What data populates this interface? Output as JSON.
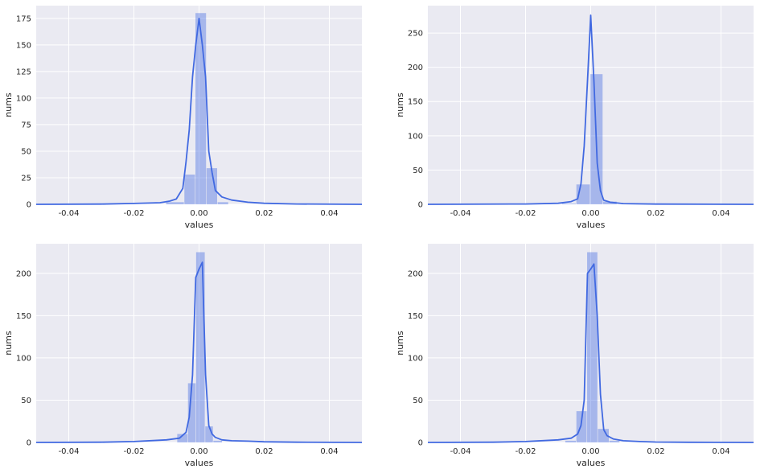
{
  "chart_data": [
    {
      "type": "histogram",
      "xlabel": "values",
      "ylabel": "nums",
      "xlim": [
        -0.05,
        0.05
      ],
      "ylim": [
        0,
        187
      ],
      "xticks": [
        "-0.04",
        "-0.02",
        "0.00",
        "0.02",
        "0.04"
      ],
      "xtick_values": [
        -0.04,
        -0.02,
        0.0,
        0.02,
        0.04
      ],
      "yticks": [
        "0",
        "25",
        "50",
        "75",
        "100",
        "125",
        "150",
        "175"
      ],
      "ytick_values": [
        0,
        25,
        50,
        75,
        100,
        125,
        150,
        175
      ],
      "bins": [
        {
          "x0": -0.0101,
          "x1": -0.0045,
          "value": 2
        },
        {
          "x0": -0.0045,
          "x1": -0.0011,
          "value": 28
        },
        {
          "x0": -0.0011,
          "x1": 0.0023,
          "value": 180
        },
        {
          "x0": 0.0023,
          "x1": 0.0057,
          "value": 34
        },
        {
          "x0": 0.0057,
          "x1": 0.0091,
          "value": 2
        }
      ],
      "kde": {
        "x": [
          -0.05,
          -0.03,
          -0.02,
          -0.012,
          -0.009,
          -0.007,
          -0.005,
          -0.004,
          -0.003,
          -0.002,
          -0.001,
          0.0,
          0.001,
          0.002,
          0.003,
          0.004,
          0.005,
          0.007,
          0.01,
          0.015,
          0.02,
          0.03,
          0.05
        ],
        "y": [
          0,
          0.2,
          0.8,
          1.5,
          3,
          5,
          15,
          40,
          70,
          120,
          150,
          175,
          150,
          120,
          50,
          30,
          13,
          7,
          4,
          2,
          1,
          0.3,
          0
        ]
      }
    },
    {
      "type": "histogram",
      "xlabel": "values",
      "ylabel": "nums",
      "xlim": [
        -0.05,
        0.05
      ],
      "ylim": [
        0,
        290
      ],
      "xticks": [
        "-0.04",
        "-0.02",
        "0.00",
        "0.02",
        "0.04"
      ],
      "xtick_values": [
        -0.04,
        -0.02,
        0.0,
        0.02,
        0.04
      ],
      "yticks": [
        "0",
        "50",
        "100",
        "150",
        "200",
        "250"
      ],
      "ytick_values": [
        0,
        50,
        100,
        150,
        200,
        250
      ],
      "bins": [
        {
          "x0": -0.0088,
          "x1": -0.0044,
          "value": 1
        },
        {
          "x0": -0.0044,
          "x1": -0.0001,
          "value": 29
        },
        {
          "x0": -0.0001,
          "x1": 0.0038,
          "value": 190
        },
        {
          "x0": 0.0038,
          "x1": 0.0081,
          "value": 4
        }
      ],
      "kde": {
        "x": [
          -0.05,
          -0.02,
          -0.01,
          -0.006,
          -0.004,
          -0.003,
          -0.002,
          -0.001,
          0.0,
          0.001,
          0.002,
          0.003,
          0.004,
          0.006,
          0.01,
          0.02,
          0.05
        ],
        "y": [
          0,
          0.5,
          1.5,
          4,
          8,
          30,
          85,
          180,
          276,
          180,
          60,
          20,
          6,
          3,
          1,
          0.3,
          0
        ]
      }
    },
    {
      "type": "histogram",
      "xlabel": "values",
      "ylabel": "nums",
      "xlim": [
        -0.05,
        0.05
      ],
      "ylim": [
        0,
        235
      ],
      "xticks": [
        "-0.04",
        "-0.02",
        "0.00",
        "0.02",
        "0.04"
      ],
      "xtick_values": [
        -0.04,
        -0.02,
        0.0,
        0.02,
        0.04
      ],
      "yticks": [
        "0",
        "50",
        "100",
        "150",
        "200"
      ],
      "ytick_values": [
        0,
        50,
        100,
        150,
        200
      ],
      "bins": [
        {
          "x0": -0.0067,
          "x1": -0.0034,
          "value": 10
        },
        {
          "x0": -0.0034,
          "x1": -0.0009,
          "value": 70
        },
        {
          "x0": -0.0009,
          "x1": 0.0019,
          "value": 225
        },
        {
          "x0": 0.0019,
          "x1": 0.0044,
          "value": 19
        },
        {
          "x0": 0.0044,
          "x1": 0.0072,
          "value": 2
        }
      ],
      "kde": {
        "x": [
          -0.05,
          -0.03,
          -0.02,
          -0.01,
          -0.006,
          -0.004,
          -0.003,
          -0.002,
          -0.001,
          0.0,
          0.001,
          0.002,
          0.003,
          0.004,
          0.005,
          0.007,
          0.01,
          0.015,
          0.02,
          0.03,
          0.05
        ],
        "y": [
          0,
          0.3,
          1,
          3,
          5,
          12,
          30,
          80,
          195,
          205,
          213,
          80,
          20,
          10,
          6,
          3,
          2,
          1.5,
          0.8,
          0.3,
          0
        ]
      }
    },
    {
      "type": "histogram",
      "xlabel": "values",
      "ylabel": "nums",
      "xlim": [
        -0.05,
        0.05
      ],
      "ylim": [
        0,
        235
      ],
      "xticks": [
        "-0.04",
        "-0.02",
        "0.00",
        "0.02",
        "0.04"
      ],
      "xtick_values": [
        -0.04,
        -0.02,
        0.0,
        0.02,
        0.04
      ],
      "yticks": [
        "0",
        "50",
        "100",
        "150",
        "200"
      ],
      "ytick_values": [
        0,
        50,
        100,
        150,
        200
      ],
      "bins": [
        {
          "x0": -0.0078,
          "x1": -0.0044,
          "value": 2
        },
        {
          "x0": -0.0044,
          "x1": -0.0011,
          "value": 37
        },
        {
          "x0": -0.0011,
          "x1": 0.0022,
          "value": 225
        },
        {
          "x0": 0.0022,
          "x1": 0.0057,
          "value": 16
        },
        {
          "x0": 0.0057,
          "x1": 0.009,
          "value": 2
        }
      ],
      "kde": {
        "x": [
          -0.05,
          -0.03,
          -0.02,
          -0.01,
          -0.006,
          -0.004,
          -0.003,
          -0.002,
          -0.001,
          0.0,
          0.001,
          0.002,
          0.003,
          0.004,
          0.005,
          0.007,
          0.01,
          0.015,
          0.02,
          0.03,
          0.05
        ],
        "y": [
          0,
          0.3,
          1,
          3,
          5,
          10,
          20,
          50,
          200,
          205,
          211,
          150,
          57,
          15,
          8,
          4,
          2,
          1,
          0.5,
          0.2,
          0
        ]
      }
    }
  ],
  "colors": {
    "background": "#eaeaf2",
    "grid": "#ffffff",
    "bar_fill": "#4169e1",
    "bar_opacity": 0.4,
    "kde_line": "#4169e1"
  }
}
